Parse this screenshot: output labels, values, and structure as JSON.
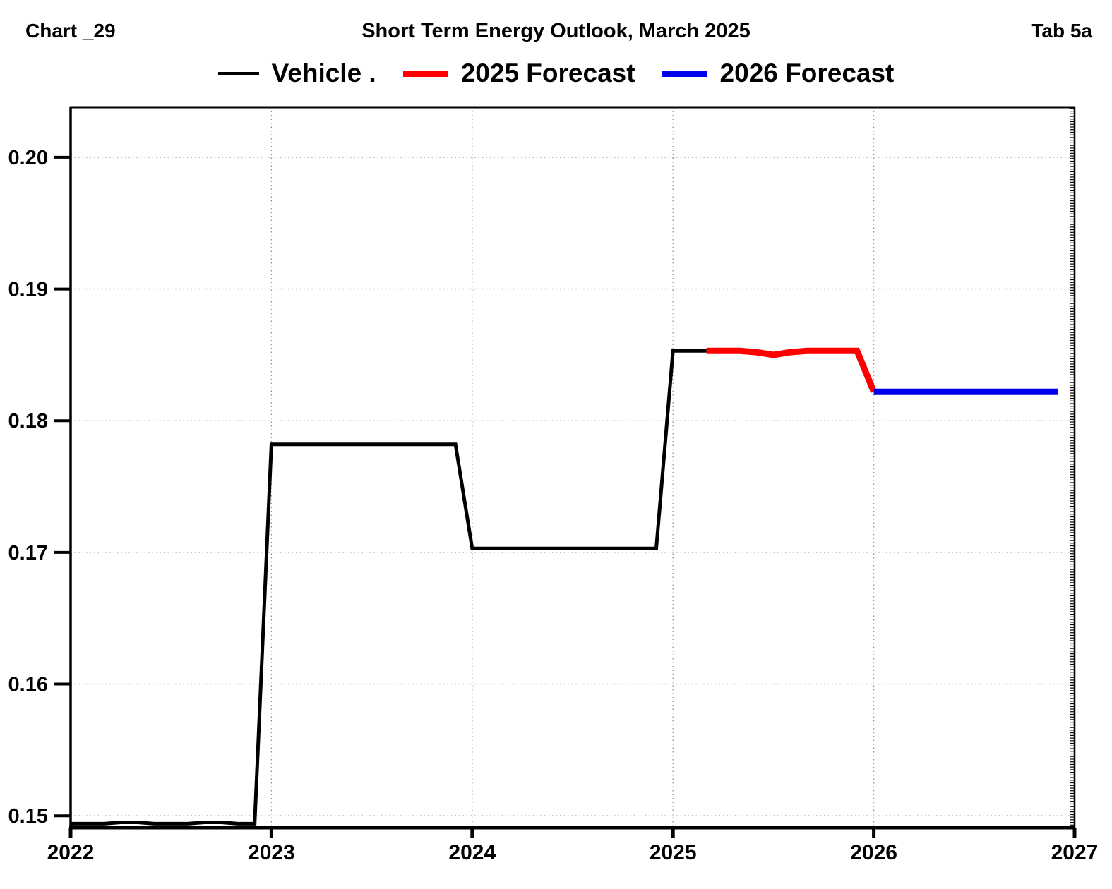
{
  "header": {
    "chart_id": "Chart _29",
    "title": "Short Term Energy Outlook, March 2025",
    "tab": "Tab 5a"
  },
  "legend": [
    {
      "label": "Vehicle .",
      "color": "#000000"
    },
    {
      "label": "2025 Forecast",
      "color": "#ff0000"
    },
    {
      "label": "2026 Forecast",
      "color": "#0000ee"
    }
  ],
  "chart_data": {
    "type": "line",
    "title": "Short Term Energy Outlook, March 2025",
    "xlabel": "",
    "ylabel": "",
    "x_range": [
      2022,
      2027
    ],
    "y_range": [
      0.1491,
      0.2038
    ],
    "x_ticks": [
      2022,
      2023,
      2024,
      2025,
      2026,
      2027
    ],
    "x_tick_labels": [
      "2022",
      "2023",
      "2024",
      "2025",
      "2026",
      "2027"
    ],
    "y_ticks": [
      0.15,
      0.16,
      0.17,
      0.18,
      0.19,
      0.2
    ],
    "y_tick_labels": [
      "0.15",
      "0.16",
      "0.17",
      "0.18",
      "0.19",
      "0.20"
    ],
    "grid": "dotted",
    "legend_position": "top-center",
    "right_axis_minor_tick_step": 0.0002,
    "series": [
      {
        "name": "Vehicle .",
        "color": "#000000",
        "line_width": 5,
        "x": [
          2022.0,
          2022.0833,
          2022.1667,
          2022.25,
          2022.3333,
          2022.4167,
          2022.5,
          2022.5833,
          2022.6667,
          2022.75,
          2022.8333,
          2022.9167,
          2023.0,
          2023.0833,
          2023.1667,
          2023.25,
          2023.3333,
          2023.4167,
          2023.5,
          2023.5833,
          2023.6667,
          2023.75,
          2023.8333,
          2023.9167,
          2024.0,
          2024.0833,
          2024.1667,
          2024.25,
          2024.3333,
          2024.4167,
          2024.5,
          2024.5833,
          2024.6667,
          2024.75,
          2024.8333,
          2024.9167,
          2025.0,
          2025.0833,
          2025.1667
        ],
        "y": [
          0.1494,
          0.1494,
          0.1494,
          0.1495,
          0.1495,
          0.1494,
          0.1494,
          0.1494,
          0.1495,
          0.1495,
          0.1494,
          0.1494,
          0.1782,
          0.1782,
          0.1782,
          0.1782,
          0.1782,
          0.1782,
          0.1782,
          0.1782,
          0.1782,
          0.1782,
          0.1782,
          0.1782,
          0.1703,
          0.1703,
          0.1703,
          0.1703,
          0.1703,
          0.1703,
          0.1703,
          0.1703,
          0.1703,
          0.1703,
          0.1703,
          0.1703,
          0.1853,
          0.1853,
          0.1853
        ]
      },
      {
        "name": "2025 Forecast",
        "color": "#ff0000",
        "line_width": 9,
        "x": [
          2025.1667,
          2025.25,
          2025.3333,
          2025.4167,
          2025.5,
          2025.5833,
          2025.6667,
          2025.75,
          2025.8333,
          2025.9167,
          2026.0
        ],
        "y": [
          0.1853,
          0.1853,
          0.1853,
          0.1852,
          0.185,
          0.1852,
          0.1853,
          0.1853,
          0.1853,
          0.1853,
          0.1822
        ]
      },
      {
        "name": "2026 Forecast",
        "color": "#0000ee",
        "line_width": 9,
        "x": [
          2026.0,
          2026.0833,
          2026.1667,
          2026.25,
          2026.3333,
          2026.4167,
          2026.5,
          2026.5833,
          2026.6667,
          2026.75,
          2026.8333,
          2026.9167
        ],
        "y": [
          0.1822,
          0.1822,
          0.1822,
          0.1822,
          0.1822,
          0.1822,
          0.1822,
          0.1822,
          0.1822,
          0.1822,
          0.1822,
          0.1822
        ]
      }
    ]
  }
}
